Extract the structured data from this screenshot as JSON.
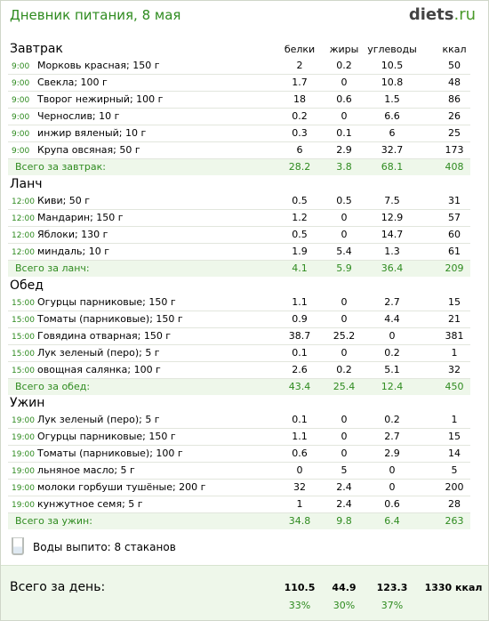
{
  "header": {
    "title": "Дневник питания, 8 мая",
    "logo_main": "diets",
    "logo_suffix": ".ru"
  },
  "columns": {
    "protein": "белки",
    "fat": "жиры",
    "carbs": "углеводы",
    "kcal": "ккал"
  },
  "meals": [
    {
      "name": "Завтрак",
      "items": [
        {
          "time": "9:00",
          "name": "Морковь красная; 150 г",
          "protein": "2",
          "fat": "0.2",
          "carbs": "10.5",
          "kcal": "50"
        },
        {
          "time": "9:00",
          "name": "Свекла; 100 г",
          "protein": "1.7",
          "fat": "0",
          "carbs": "10.8",
          "kcal": "48"
        },
        {
          "time": "9:00",
          "name": "Творог нежирный; 100 г",
          "protein": "18",
          "fat": "0.6",
          "carbs": "1.5",
          "kcal": "86"
        },
        {
          "time": "9:00",
          "name": "Чернослив; 10 г",
          "protein": "0.2",
          "fat": "0",
          "carbs": "6.6",
          "kcal": "26"
        },
        {
          "time": "9:00",
          "name": "инжир вяленый; 10 г",
          "protein": "0.3",
          "fat": "0.1",
          "carbs": "6",
          "kcal": "25"
        },
        {
          "time": "9:00",
          "name": "Крупа овсяная; 50 г",
          "protein": "6",
          "fat": "2.9",
          "carbs": "32.7",
          "kcal": "173"
        }
      ],
      "total": {
        "label": "Всего за завтрак:",
        "protein": "28.2",
        "fat": "3.8",
        "carbs": "68.1",
        "kcal": "408"
      }
    },
    {
      "name": "Ланч",
      "items": [
        {
          "time": "12:00",
          "name": "Киви; 50 г",
          "protein": "0.5",
          "fat": "0.5",
          "carbs": "7.5",
          "kcal": "31"
        },
        {
          "time": "12:00",
          "name": "Мандарин; 150 г",
          "protein": "1.2",
          "fat": "0",
          "carbs": "12.9",
          "kcal": "57"
        },
        {
          "time": "12:00",
          "name": "Яблоки; 130 г",
          "protein": "0.5",
          "fat": "0",
          "carbs": "14.7",
          "kcal": "60"
        },
        {
          "time": "12:00",
          "name": "миндаль; 10 г",
          "protein": "1.9",
          "fat": "5.4",
          "carbs": "1.3",
          "kcal": "61"
        }
      ],
      "total": {
        "label": "Всего за ланч:",
        "protein": "4.1",
        "fat": "5.9",
        "carbs": "36.4",
        "kcal": "209"
      }
    },
    {
      "name": "Обед",
      "items": [
        {
          "time": "15:00",
          "name": "Огурцы парниковые; 150 г",
          "protein": "1.1",
          "fat": "0",
          "carbs": "2.7",
          "kcal": "15"
        },
        {
          "time": "15:00",
          "name": "Томаты (парниковые); 150 г",
          "protein": "0.9",
          "fat": "0",
          "carbs": "4.4",
          "kcal": "21"
        },
        {
          "time": "15:00",
          "name": "Говядина отварная; 150 г",
          "protein": "38.7",
          "fat": "25.2",
          "carbs": "0",
          "kcal": "381"
        },
        {
          "time": "15:00",
          "name": "Лук зеленый (перо); 5 г",
          "protein": "0.1",
          "fat": "0",
          "carbs": "0.2",
          "kcal": "1"
        },
        {
          "time": "15:00",
          "name": "овощная салянка; 100 г",
          "protein": "2.6",
          "fat": "0.2",
          "carbs": "5.1",
          "kcal": "32"
        }
      ],
      "total": {
        "label": "Всего за обед:",
        "protein": "43.4",
        "fat": "25.4",
        "carbs": "12.4",
        "kcal": "450"
      }
    },
    {
      "name": "Ужин",
      "items": [
        {
          "time": "19:00",
          "name": "Лук зеленый (перо); 5 г",
          "protein": "0.1",
          "fat": "0",
          "carbs": "0.2",
          "kcal": "1"
        },
        {
          "time": "19:00",
          "name": "Огурцы парниковые; 150 г",
          "protein": "1.1",
          "fat": "0",
          "carbs": "2.7",
          "kcal": "15"
        },
        {
          "time": "19:00",
          "name": "Томаты (парниковые); 100 г",
          "protein": "0.6",
          "fat": "0",
          "carbs": "2.9",
          "kcal": "14"
        },
        {
          "time": "19:00",
          "name": "льняное масло; 5 г",
          "protein": "0",
          "fat": "5",
          "carbs": "0",
          "kcal": "5"
        },
        {
          "time": "19:00",
          "name": "молоки горбуши тушёные; 200 г",
          "protein": "32",
          "fat": "2.4",
          "carbs": "0",
          "kcal": "200"
        },
        {
          "time": "19:00",
          "name": "кунжутное семя; 5 г",
          "protein": "1",
          "fat": "2.4",
          "carbs": "0.6",
          "kcal": "28"
        }
      ],
      "total": {
        "label": "Всего за ужин:",
        "protein": "34.8",
        "fat": "9.8",
        "carbs": "6.4",
        "kcal": "263"
      }
    }
  ],
  "water": {
    "text": "Воды выпито: 8 стаканов",
    "icon": "glass-icon"
  },
  "day_total": {
    "label": "Всего за день:",
    "protein": "110.5",
    "fat": "44.9",
    "carbs": "123.3",
    "kcal": "1330 ккал",
    "protein_pct": "33%",
    "fat_pct": "30%",
    "carbs_pct": "37%"
  },
  "colors": {
    "accent": "#2e8b1f",
    "total_bg": "#eef7ea"
  }
}
